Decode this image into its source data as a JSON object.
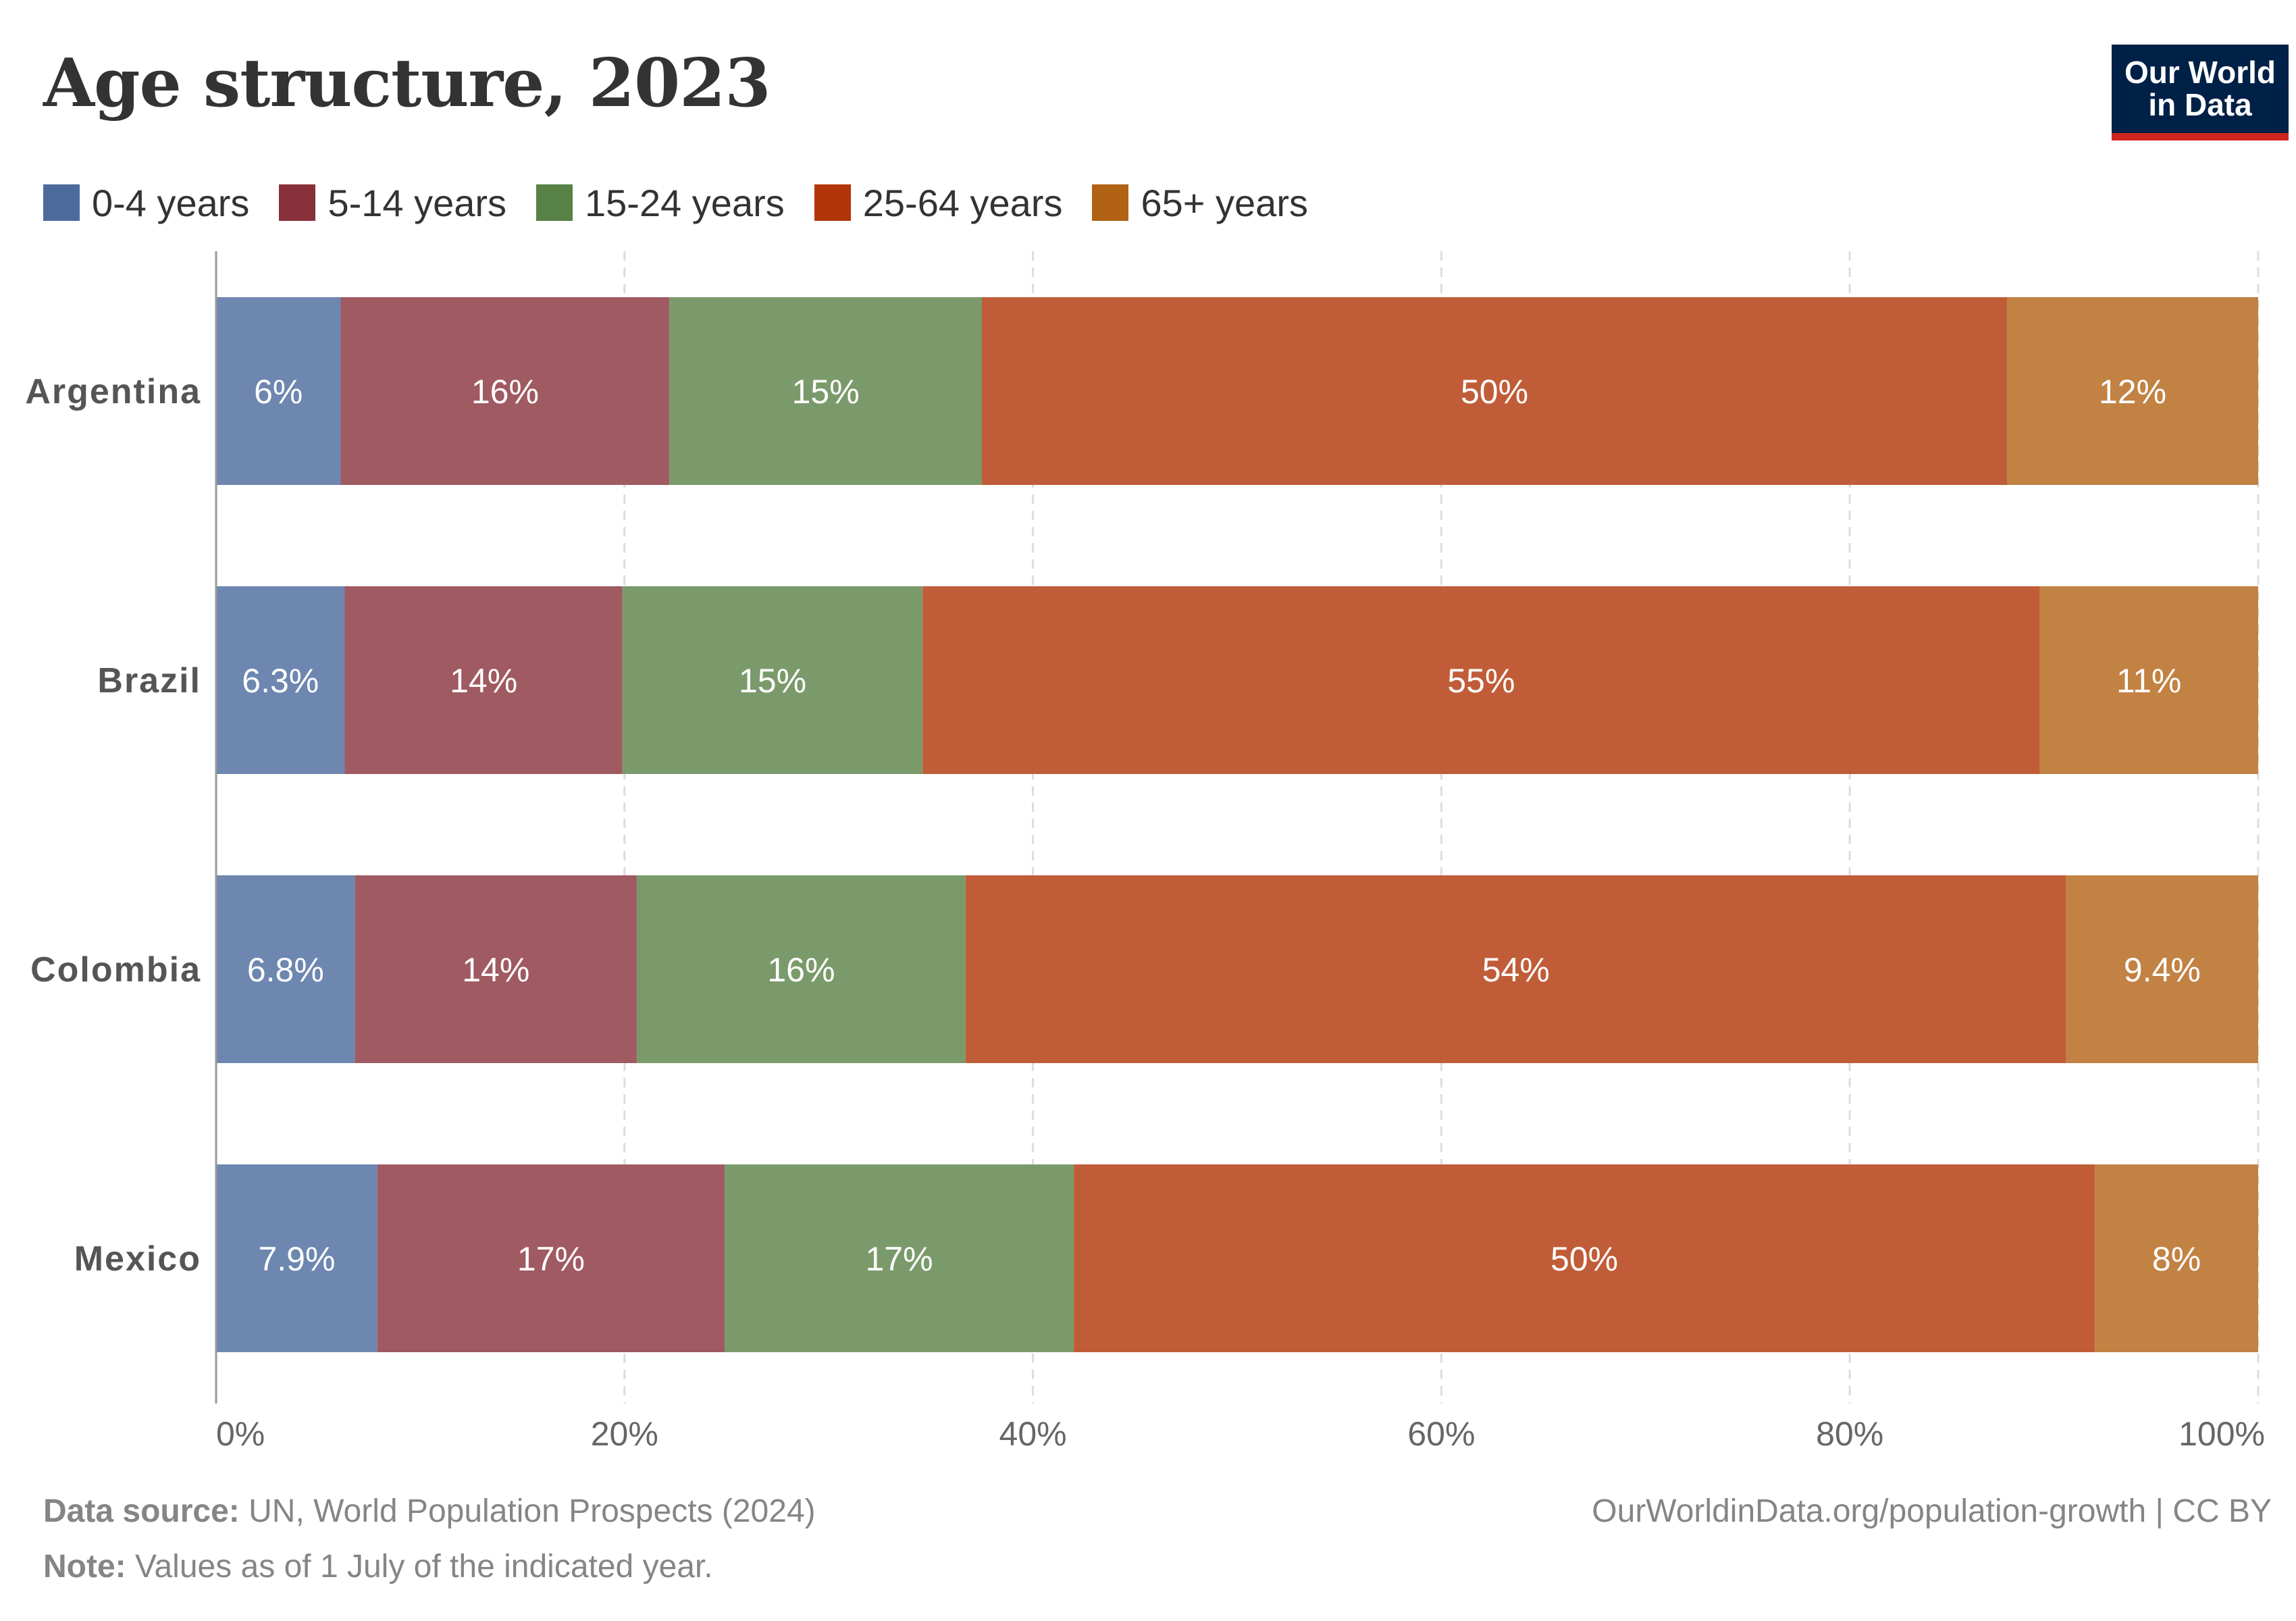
{
  "header": {
    "title": "Age structure, 2023",
    "logo_line1": "Our World",
    "logo_line2": "in Data"
  },
  "chart_data": {
    "type": "bar",
    "orientation": "horizontal",
    "stacked": true,
    "title": "Age structure, 2023",
    "categories": [
      "Argentina",
      "Brazil",
      "Colombia",
      "Mexico"
    ],
    "series": [
      {
        "name": "0-4 years",
        "color": "#6d87b0",
        "values": [
          6.1,
          6.3,
          6.8,
          7.9
        ],
        "labels": [
          "6%",
          "6.3%",
          "6.8%",
          "7.9%"
        ]
      },
      {
        "name": "5-14 years",
        "color": "#a05a62",
        "values": [
          16.1,
          13.6,
          13.8,
          17.0
        ],
        "labels": [
          "16%",
          "14%",
          "14%",
          "17%"
        ]
      },
      {
        "name": "15-24 years",
        "color": "#7b9a6b",
        "values": [
          15.3,
          14.7,
          16.1,
          17.1
        ],
        "labels": [
          "15%",
          "15%",
          "16%",
          "17%"
        ]
      },
      {
        "name": "25-64 years",
        "color": "#c05d38",
        "values": [
          50.2,
          54.7,
          53.9,
          50.0
        ],
        "labels": [
          "50%",
          "55%",
          "54%",
          "50%"
        ]
      },
      {
        "name": "65+ years",
        "color": "#c28243",
        "values": [
          12.3,
          10.7,
          9.4,
          8.0
        ],
        "labels": [
          "12%",
          "11%",
          "9.4%",
          "8%"
        ]
      }
    ],
    "legend_colors": [
      "#4c6a9c",
      "#883039",
      "#578145",
      "#b13507",
      "#b16214"
    ],
    "xlim": [
      0,
      100
    ],
    "x_ticks": [
      "0%",
      "20%",
      "40%",
      "60%",
      "80%",
      "100%"
    ],
    "grid": "vertical dashed",
    "legend_position": "top-left"
  },
  "footer": {
    "source_label": "Data source:",
    "source_text": "UN, World Population Prospects (2024)",
    "note_label": "Note:",
    "note_text": "Values as of 1 July of the indicated year.",
    "url": "OurWorldinData.org/population-growth | CC BY"
  }
}
